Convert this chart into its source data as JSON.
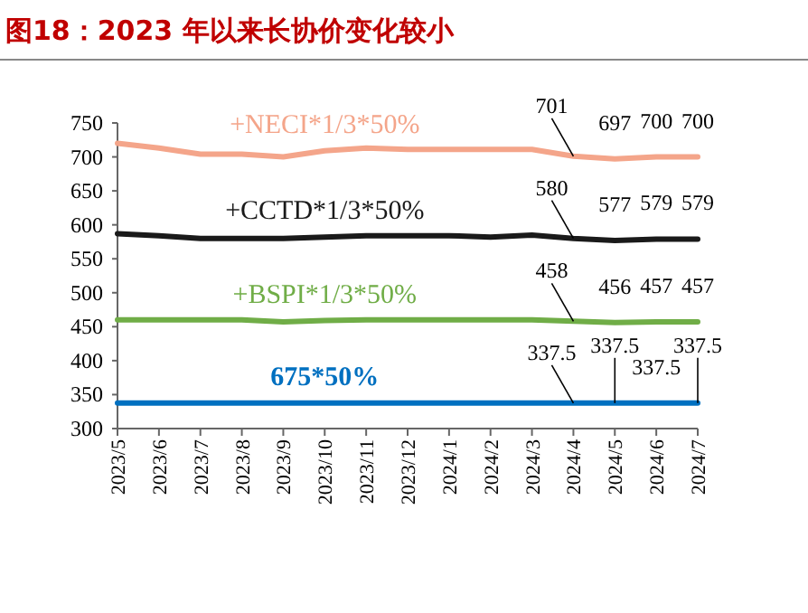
{
  "chart_data": {
    "type": "line",
    "title": "图18：2023 年以来长协价变化较小",
    "categories": [
      "2023/5",
      "2023/6",
      "2023/7",
      "2023/8",
      "2023/9",
      "2023/10",
      "2023/11",
      "2023/12",
      "2024/1",
      "2024/2",
      "2024/3",
      "2024/4",
      "2024/5",
      "2024/6",
      "2024/7"
    ],
    "ylim": [
      300,
      750
    ],
    "yticks": [
      300,
      350,
      400,
      450,
      500,
      550,
      600,
      650,
      700,
      750
    ],
    "grid": false,
    "legend": false,
    "marker": "none",
    "series": [
      {
        "name": "+NECI*1/3*50%",
        "color": "#f4a58a",
        "values": [
          720,
          713,
          704,
          704,
          700,
          709,
          713,
          711,
          711,
          711,
          711,
          701,
          697,
          700,
          700
        ],
        "value_labels": [
          null,
          null,
          null,
          null,
          null,
          null,
          null,
          null,
          null,
          null,
          null,
          "701",
          "697",
          "700",
          "700"
        ]
      },
      {
        "name": "+CCTD*1/3*50%",
        "color": "#1a1a1a",
        "values": [
          587,
          584,
          580,
          580,
          580,
          582,
          584,
          584,
          584,
          582,
          585,
          580,
          577,
          579,
          579
        ],
        "value_labels": [
          null,
          null,
          null,
          null,
          null,
          null,
          null,
          null,
          null,
          null,
          null,
          "580",
          "577",
          "579",
          "579"
        ]
      },
      {
        "name": "+BSPI*1/3*50%",
        "color": "#70ad47",
        "values": [
          460,
          460,
          460,
          460,
          457,
          459,
          460,
          460,
          460,
          460,
          460,
          458,
          456,
          457,
          457
        ],
        "value_labels": [
          null,
          null,
          null,
          null,
          null,
          null,
          null,
          null,
          null,
          null,
          null,
          "458",
          "456",
          "457",
          "457"
        ]
      },
      {
        "name": "675*50%",
        "color": "#0070c0",
        "values": [
          337.5,
          337.5,
          337.5,
          337.5,
          337.5,
          337.5,
          337.5,
          337.5,
          337.5,
          337.5,
          337.5,
          337.5,
          337.5,
          337.5,
          337.5
        ],
        "value_labels": [
          null,
          null,
          null,
          null,
          null,
          null,
          null,
          null,
          null,
          null,
          null,
          "337.5",
          "337.5",
          "337.5",
          "337.5"
        ]
      }
    ]
  }
}
